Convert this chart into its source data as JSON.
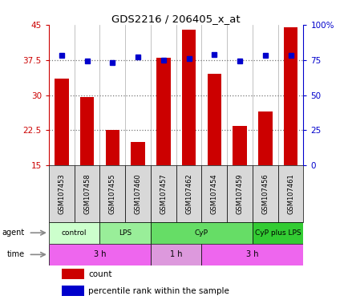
{
  "title": "GDS2216 / 206405_x_at",
  "samples": [
    "GSM107453",
    "GSM107458",
    "GSM107455",
    "GSM107460",
    "GSM107457",
    "GSM107462",
    "GSM107454",
    "GSM107459",
    "GSM107456",
    "GSM107461"
  ],
  "counts": [
    33.5,
    29.5,
    22.5,
    20.0,
    38.0,
    44.0,
    34.5,
    23.5,
    26.5,
    44.5
  ],
  "percentiles": [
    78,
    74,
    73,
    77,
    75,
    76,
    79,
    74,
    78,
    78
  ],
  "ylim_left": [
    15,
    45
  ],
  "ylim_right": [
    0,
    100
  ],
  "yticks_left": [
    15,
    22.5,
    30,
    37.5,
    45
  ],
  "yticks_right": [
    0,
    25,
    50,
    75,
    100
  ],
  "ytick_labels_left": [
    "15",
    "22.5",
    "30",
    "37.5",
    "45"
  ],
  "ytick_labels_right": [
    "0",
    "25",
    "50",
    "75",
    "100%"
  ],
  "bar_color": "#cc0000",
  "dot_color": "#0000cc",
  "agent_groups": [
    {
      "label": "control",
      "start": 0,
      "end": 2
    },
    {
      "label": "LPS",
      "start": 2,
      "end": 4
    },
    {
      "label": "CyP",
      "start": 4,
      "end": 8
    },
    {
      "label": "CyP plus LPS",
      "start": 8,
      "end": 10
    }
  ],
  "agent_colors": [
    "#ccffcc",
    "#99ee99",
    "#66dd66",
    "#33cc33"
  ],
  "time_groups": [
    {
      "label": "3 h",
      "start": 0,
      "end": 4
    },
    {
      "label": "1 h",
      "start": 4,
      "end": 6
    },
    {
      "label": "3 h",
      "start": 6,
      "end": 10
    }
  ],
  "time_colors": [
    "#ee66ee",
    "#dd99dd",
    "#ee66ee"
  ],
  "background_color": "#ffffff",
  "dotted_line_color": "#777777",
  "dotted_lines": [
    22.5,
    30,
    37.5
  ],
  "agent_label": "agent",
  "time_label": "time",
  "legend_count": "count",
  "legend_pct": "percentile rank within the sample",
  "sample_box_color": "#d8d8d8",
  "separator_color": "#aaaaaa",
  "arrow_color": "#888888"
}
